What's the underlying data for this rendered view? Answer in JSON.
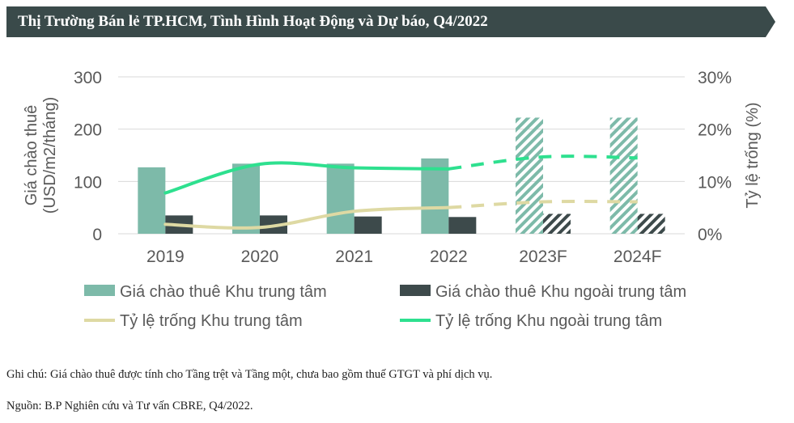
{
  "header": {
    "title": "Thị Trường Bán lẻ TP.HCM, Tình Hình Hoạt Động và Dự báo, Q4/2022"
  },
  "notes": {
    "note": "Ghi chú: Giá chào thuê được tính cho Tầng trệt và Tầng một, chưa bao gồm thuế GTGT và phí dịch vụ.",
    "source": "Nguồn: B.P Nghiên cứu và Tư vấn CBRE, Q4/2022."
  },
  "colors": {
    "banner": "#3a4a4a",
    "cbd_rent": "#7dbaa9",
    "noncbd_rent": "#3d4a4b",
    "cbd_vacancy": "#ded9a3",
    "noncbd_vacancy": "#2ee08f",
    "grid": "#d9d9d9",
    "text": "#595959"
  },
  "chart_data": {
    "type": "bar",
    "categories": [
      "2019",
      "2020",
      "2021",
      "2022",
      "2023F",
      "2024F"
    ],
    "forecast_categories": [
      "2023F",
      "2024F"
    ],
    "ylabel": "Giá chào thuê\n(USD/m2/tháng)",
    "ylabel_right": "Tỷ lệ trống (%)",
    "ylim": [
      0,
      300
    ],
    "ylim_right": [
      0,
      30
    ],
    "yticks": [
      "0",
      "100",
      "200",
      "300"
    ],
    "yticks_right": [
      "0%",
      "10%",
      "20%",
      "30%"
    ],
    "grid": true,
    "legend_position": "bottom",
    "series": [
      {
        "name": "Giá chào thuê Khu trung tâm",
        "type": "bar",
        "axis": "left",
        "values": [
          127,
          134,
          134,
          144,
          222,
          222
        ]
      },
      {
        "name": "Giá chào thuê Khu ngoài trung tâm",
        "type": "bar",
        "axis": "left",
        "values": [
          35,
          35,
          33,
          32,
          38,
          38
        ]
      },
      {
        "name": "Tỷ lệ trống Khu trung tâm",
        "type": "line",
        "axis": "right",
        "values": [
          1.8,
          1.2,
          4.3,
          5.0,
          6.1,
          6.1
        ]
      },
      {
        "name": "Tỷ lệ trống Khu ngoài trung tâm",
        "type": "line",
        "axis": "right",
        "values": [
          7.8,
          13.3,
          12.6,
          12.4,
          14.7,
          14.5
        ]
      }
    ]
  }
}
